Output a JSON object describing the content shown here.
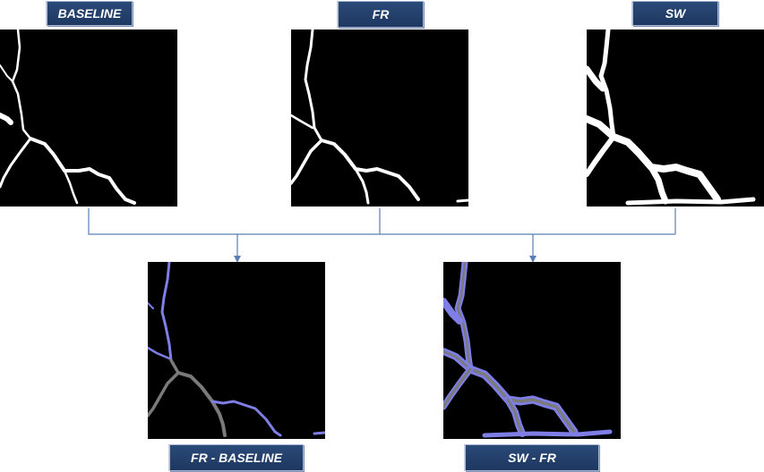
{
  "top_labels": {
    "baseline": "BASELINE",
    "fr": "FR",
    "sw": "SW"
  },
  "bottom_labels": {
    "fr_minus_baseline": "FR - BASELINE",
    "sw_minus_fr": "SW - FR"
  },
  "colors": {
    "label_bg": "#1f3a66",
    "label_text": "#ffffff",
    "crack_white": "#ffffff",
    "diff_gray": "#7a7a7a",
    "diff_blue": "#7e7ee6",
    "connector": "#5b7fb5",
    "panel_bg": "#000000"
  }
}
